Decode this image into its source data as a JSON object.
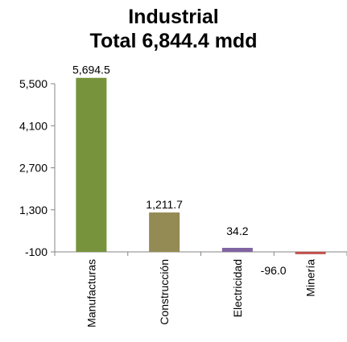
{
  "chart_data": {
    "type": "bar",
    "title": "Industrial",
    "subtitle": "Total 6,844.4 mdd",
    "xlabel": "",
    "ylabel": "",
    "categories": [
      "Manufacturas",
      "Construcción",
      "Electricidad",
      "Minería"
    ],
    "values": [
      5694.5,
      1211.7,
      34.2,
      -96.0
    ],
    "value_labels": [
      "5,694.5",
      "1,211.7",
      "34.2",
      "-96.0"
    ],
    "bar_colors": [
      "#77933C",
      "#948A54",
      "#8064A2",
      "#C0504D"
    ],
    "yticks": [
      -100,
      1300,
      2700,
      4100,
      5500
    ],
    "ytick_labels": [
      "-100",
      "1,300",
      "2,700",
      "4,100",
      "5,500"
    ],
    "ylim": [
      -100,
      5500
    ],
    "grid": false,
    "legend": "none"
  }
}
